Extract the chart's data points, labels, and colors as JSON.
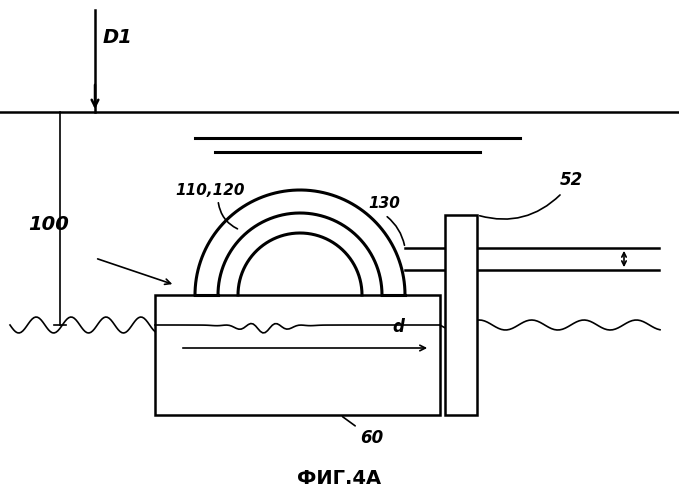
{
  "title": "ФИГ.4А",
  "bg_color": "#ffffff",
  "line_color": "#000000",
  "lw": 1.8,
  "lw_thick": 2.2,
  "lw_thin": 1.2
}
